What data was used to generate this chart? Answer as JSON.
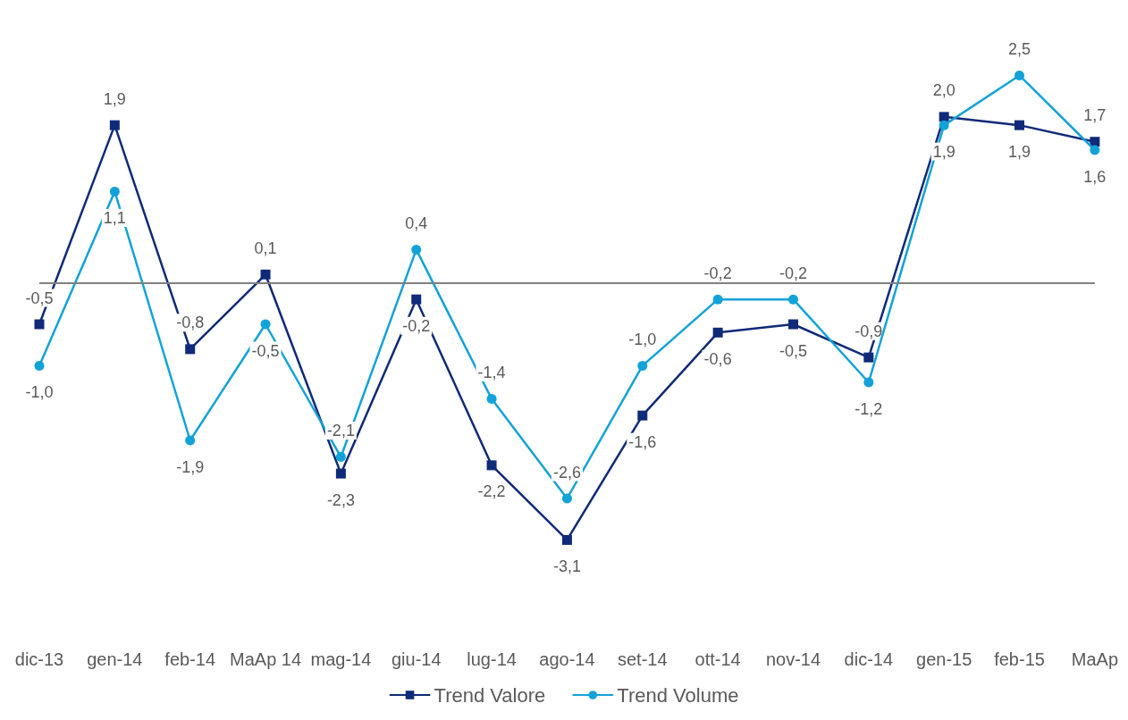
{
  "chart_data": {
    "type": "line",
    "categories": [
      "dic-13",
      "gen-14",
      "feb-14",
      "MaAp 14",
      "mag-14",
      "giu-14",
      "lug-14",
      "ago-14",
      "set-14",
      "ott-14",
      "nov-14",
      "dic-14",
      "gen-15",
      "feb-15",
      "MaAp"
    ],
    "series": [
      {
        "name": "Trend Valore",
        "color": "#0f2a78",
        "marker": "square",
        "values": [
          -0.5,
          1.9,
          -0.8,
          0.1,
          -2.3,
          -0.2,
          -2.2,
          -3.1,
          -1.6,
          -0.6,
          -0.5,
          -0.9,
          2.0,
          1.9,
          1.7
        ],
        "value_labels": [
          "-0,5",
          "1,9",
          "-0,8",
          "0,1",
          "-2,3",
          "-0,2",
          "-2,2",
          "-3,1",
          "-1,6",
          "-0,6",
          "-0,5",
          "-0,9",
          "2,0",
          "1,9",
          "1,7"
        ]
      },
      {
        "name": "Trend Volume",
        "color": "#12a2d8",
        "marker": "circle",
        "values": [
          -1.0,
          1.1,
          -1.9,
          -0.5,
          -2.1,
          0.4,
          -1.4,
          -2.6,
          -1.0,
          -0.2,
          -0.2,
          -1.2,
          1.9,
          2.5,
          1.6
        ],
        "value_labels": [
          "-1,0",
          "1,1",
          "-1,9",
          "-0,5",
          "-2,1",
          "0,4",
          "-1,4",
          "-2,6",
          "-1,0",
          "-0,2",
          "-0,2",
          "-1,2",
          "1,9",
          "2,5",
          "1,6"
        ]
      }
    ],
    "ref_lines": [
      {
        "axis": "y",
        "value": 0,
        "color": "#808080"
      }
    ],
    "tick_labels": "x",
    "grid": false,
    "legend": "bottom",
    "line_style": "solid"
  }
}
